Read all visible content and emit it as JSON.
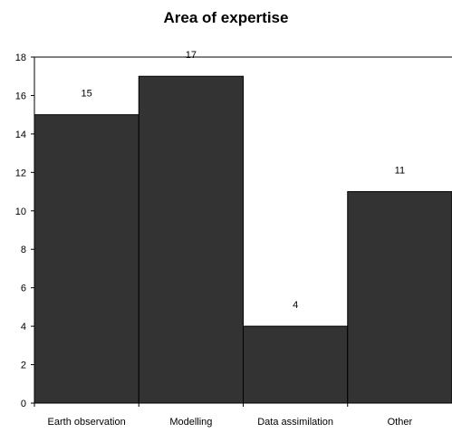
{
  "chart_data": {
    "type": "bar",
    "title": "Area of expertise",
    "categories": [
      "Earth observation",
      "Modelling",
      "Data assimilation",
      "Other"
    ],
    "values": [
      15,
      17,
      4,
      11
    ],
    "xlabel": "",
    "ylabel": "",
    "ylim": [
      0,
      18
    ],
    "yticks": [
      "0",
      "2",
      "4",
      "6",
      "8",
      "10",
      "12",
      "14",
      "16",
      "18"
    ],
    "grid": false,
    "legend": "none",
    "bar_color": "#333333",
    "bar_edge_color": "#000000"
  }
}
